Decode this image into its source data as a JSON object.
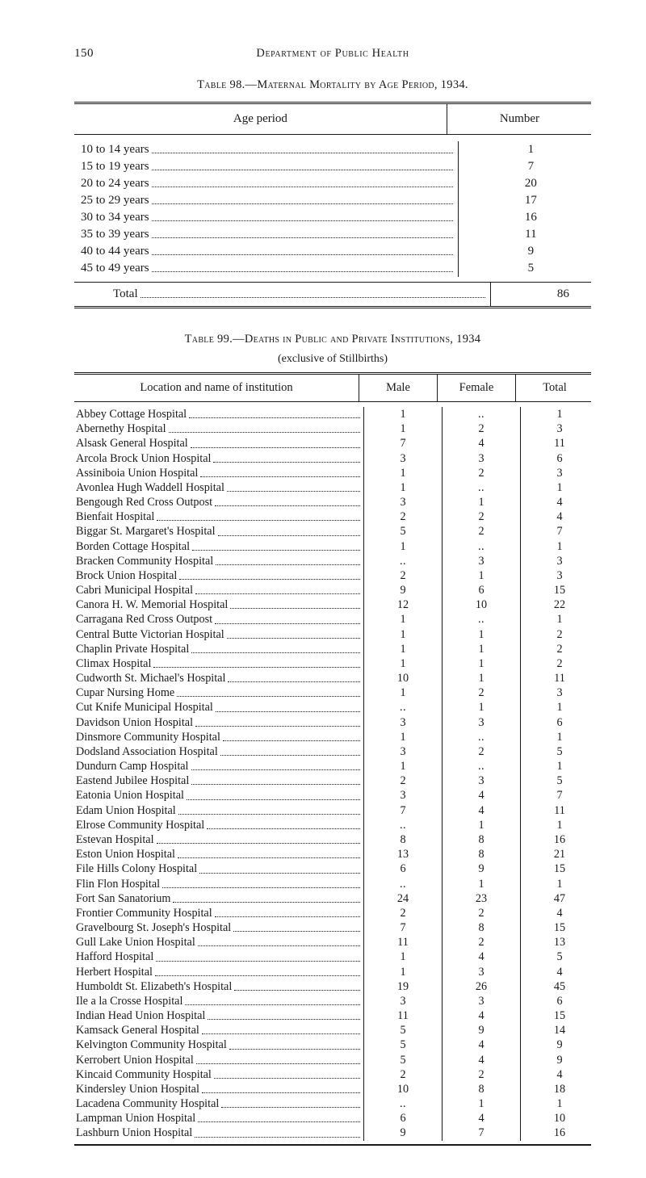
{
  "page_number": "150",
  "running_title": "Department of Public Health",
  "table98": {
    "caption_roman": "Table",
    "caption_num": " 98.—",
    "caption_sc": "Maternal Mortality by Age Period, ",
    "caption_year": "1934.",
    "header_age": "Age period",
    "header_number": "Number",
    "rows": [
      {
        "label": "10 to 14 years",
        "value": "1"
      },
      {
        "label": "15 to 19 years",
        "value": "7"
      },
      {
        "label": "20 to 24 years",
        "value": "20"
      },
      {
        "label": "25 to 29 years",
        "value": "17"
      },
      {
        "label": "30 to 34 years",
        "value": "16"
      },
      {
        "label": "35 to 39 years",
        "value": "11"
      },
      {
        "label": "40 to 44 years",
        "value": "9"
      },
      {
        "label": "45 to 49 years",
        "value": "5"
      }
    ],
    "total_label": "Total",
    "total_value": "86"
  },
  "table99": {
    "caption_roman": "Table",
    "caption_num": " 99.—",
    "caption_sc": "Deaths in Public and Private Institutions, ",
    "caption_year": "1934",
    "subcaption": "(exclusive of Stillbirths)",
    "header_loc": "Location and name of institution",
    "header_male": "Male",
    "header_female": "Female",
    "header_total": "Total",
    "rows": [
      {
        "loc": "Abbey Cottage Hospital",
        "m": "1",
        "f": "..",
        "t": "1"
      },
      {
        "loc": "Abernethy Hospital",
        "m": "1",
        "f": "2",
        "t": "3"
      },
      {
        "loc": "Alsask General Hospital",
        "m": "7",
        "f": "4",
        "t": "11"
      },
      {
        "loc": "Arcola Brock Union Hospital",
        "m": "3",
        "f": "3",
        "t": "6"
      },
      {
        "loc": "Assiniboia Union Hospital",
        "m": "1",
        "f": "2",
        "t": "3"
      },
      {
        "loc": "Avonlea Hugh Waddell Hospital",
        "m": "1",
        "f": "..",
        "t": "1"
      },
      {
        "loc": "Bengough Red Cross Outpost",
        "m": "3",
        "f": "1",
        "t": "4"
      },
      {
        "loc": "Bienfait Hospital",
        "m": "2",
        "f": "2",
        "t": "4"
      },
      {
        "loc": "Biggar St. Margaret's Hospital",
        "m": "5",
        "f": "2",
        "t": "7"
      },
      {
        "loc": "Borden Cottage Hospital",
        "m": "1",
        "f": "..",
        "t": "1"
      },
      {
        "loc": "Bracken Community Hospital",
        "m": "..",
        "f": "3",
        "t": "3"
      },
      {
        "loc": "Brock Union Hospital",
        "m": "2",
        "f": "1",
        "t": "3"
      },
      {
        "loc": "Cabri Municipal Hospital",
        "m": "9",
        "f": "6",
        "t": "15"
      },
      {
        "loc": "Canora H. W. Memorial Hospital",
        "m": "12",
        "f": "10",
        "t": "22"
      },
      {
        "loc": "Carragana Red Cross Outpost",
        "m": "1",
        "f": "..",
        "t": "1"
      },
      {
        "loc": "Central Butte Victorian Hospital",
        "m": "1",
        "f": "1",
        "t": "2"
      },
      {
        "loc": "Chaplin Private Hospital",
        "m": "1",
        "f": "1",
        "t": "2"
      },
      {
        "loc": "Climax Hospital",
        "m": "1",
        "f": "1",
        "t": "2"
      },
      {
        "loc": "Cudworth St. Michael's Hospital",
        "m": "10",
        "f": "1",
        "t": "11"
      },
      {
        "loc": "Cupar Nursing Home",
        "m": "1",
        "f": "2",
        "t": "3"
      },
      {
        "loc": "Cut Knife Municipal Hospital",
        "m": "..",
        "f": "1",
        "t": "1"
      },
      {
        "loc": "Davidson Union Hospital",
        "m": "3",
        "f": "3",
        "t": "6"
      },
      {
        "loc": "Dinsmore Community Hospital",
        "m": "1",
        "f": "..",
        "t": "1"
      },
      {
        "loc": "Dodsland Association Hospital",
        "m": "3",
        "f": "2",
        "t": "5"
      },
      {
        "loc": "Dundurn Camp Hospital",
        "m": "1",
        "f": "..",
        "t": "1"
      },
      {
        "loc": "Eastend Jubilee Hospital",
        "m": "2",
        "f": "3",
        "t": "5"
      },
      {
        "loc": "Eatonia Union Hospital",
        "m": "3",
        "f": "4",
        "t": "7"
      },
      {
        "loc": "Edam Union Hospital",
        "m": "7",
        "f": "4",
        "t": "11"
      },
      {
        "loc": "Elrose Community Hospital",
        "m": "..",
        "f": "1",
        "t": "1"
      },
      {
        "loc": "Estevan Hospital",
        "m": "8",
        "f": "8",
        "t": "16"
      },
      {
        "loc": "Eston Union Hospital",
        "m": "13",
        "f": "8",
        "t": "21"
      },
      {
        "loc": "File Hills Colony Hospital",
        "m": "6",
        "f": "9",
        "t": "15"
      },
      {
        "loc": "Flin Flon Hospital",
        "m": "..",
        "f": "1",
        "t": "1"
      },
      {
        "loc": "Fort San Sanatorium",
        "m": "24",
        "f": "23",
        "t": "47"
      },
      {
        "loc": "Frontier Community Hospital",
        "m": "2",
        "f": "2",
        "t": "4"
      },
      {
        "loc": "Gravelbourg St. Joseph's Hospital",
        "m": "7",
        "f": "8",
        "t": "15"
      },
      {
        "loc": "Gull Lake Union Hospital",
        "m": "11",
        "f": "2",
        "t": "13"
      },
      {
        "loc": "Hafford Hospital",
        "m": "1",
        "f": "4",
        "t": "5"
      },
      {
        "loc": "Herbert Hospital",
        "m": "1",
        "f": "3",
        "t": "4"
      },
      {
        "loc": "Humboldt St. Elizabeth's Hospital",
        "m": "19",
        "f": "26",
        "t": "45"
      },
      {
        "loc": "Ile a la Crosse Hospital",
        "m": "3",
        "f": "3",
        "t": "6"
      },
      {
        "loc": "Indian Head Union Hospital",
        "m": "11",
        "f": "4",
        "t": "15"
      },
      {
        "loc": "Kamsack General Hospital",
        "m": "5",
        "f": "9",
        "t": "14"
      },
      {
        "loc": "Kelvington Community Hospital",
        "m": "5",
        "f": "4",
        "t": "9"
      },
      {
        "loc": "Kerrobert Union Hospital",
        "m": "5",
        "f": "4",
        "t": "9"
      },
      {
        "loc": "Kincaid Community Hospital",
        "m": "2",
        "f": "2",
        "t": "4"
      },
      {
        "loc": "Kindersley Union Hospital",
        "m": "10",
        "f": "8",
        "t": "18"
      },
      {
        "loc": "Lacadena Community Hospital",
        "m": "..",
        "f": "1",
        "t": "1"
      },
      {
        "loc": "Lampman Union Hospital",
        "m": "6",
        "f": "4",
        "t": "10"
      },
      {
        "loc": "Lashburn Union Hospital",
        "m": "9",
        "f": "7",
        "t": "16"
      }
    ]
  }
}
